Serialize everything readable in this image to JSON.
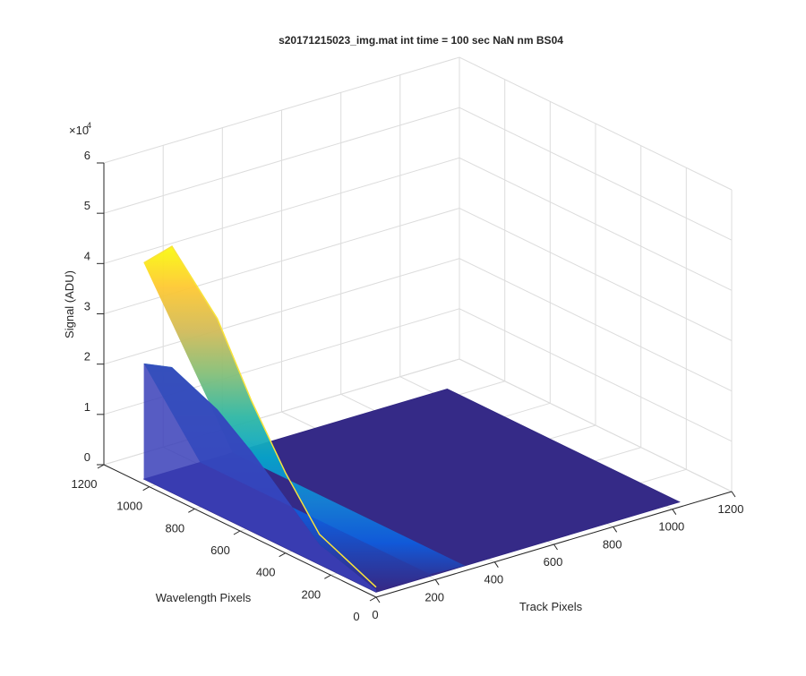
{
  "figure": {
    "title": "s20171215023_img.mat int time = 100 sec  NaN nm BS04"
  },
  "chart_data": {
    "type": "surface",
    "title": "s20171215023_img.mat int time = 100 sec  NaN nm BS04",
    "xlabel": "Track Pixels",
    "ylabel": "Wavelength Pixels",
    "zlabel": "Signal (ADU)",
    "z_exponent_label": "×10",
    "z_exponent": "4",
    "xlim": [
      0,
      1200
    ],
    "ylim": [
      0,
      1200
    ],
    "zlim": [
      0,
      60000
    ],
    "x_ticks": [
      "0",
      "200",
      "400",
      "600",
      "800",
      "1000",
      "1200"
    ],
    "y_ticks": [
      "0",
      "200",
      "400",
      "600",
      "800",
      "1000",
      "1200"
    ],
    "z_ticks": [
      "0",
      "1",
      "2",
      "3",
      "4",
      "5",
      "6"
    ],
    "grid": true,
    "colormap": [
      "#352a87",
      "#0f5cdd",
      "#1481d6",
      "#06a4ca",
      "#2eb7a4",
      "#87bf77",
      "#d1bb59",
      "#fec832",
      "#f9fb0e"
    ],
    "surface": {
      "extent_x": [
        0,
        1024
      ],
      "extent_y": [
        0,
        1024
      ],
      "baseline_signal": 1000,
      "bright_region_x": [
        0,
        40
      ],
      "peak_y": [
        0,
        250,
        400,
        550,
        700,
        900,
        1024
      ],
      "peak_signal": [
        2000,
        7000,
        16000,
        27000,
        40000,
        50000,
        44000
      ],
      "inner_signal": [
        1500,
        5000,
        11000,
        17000,
        22000,
        26000,
        24000
      ]
    }
  }
}
